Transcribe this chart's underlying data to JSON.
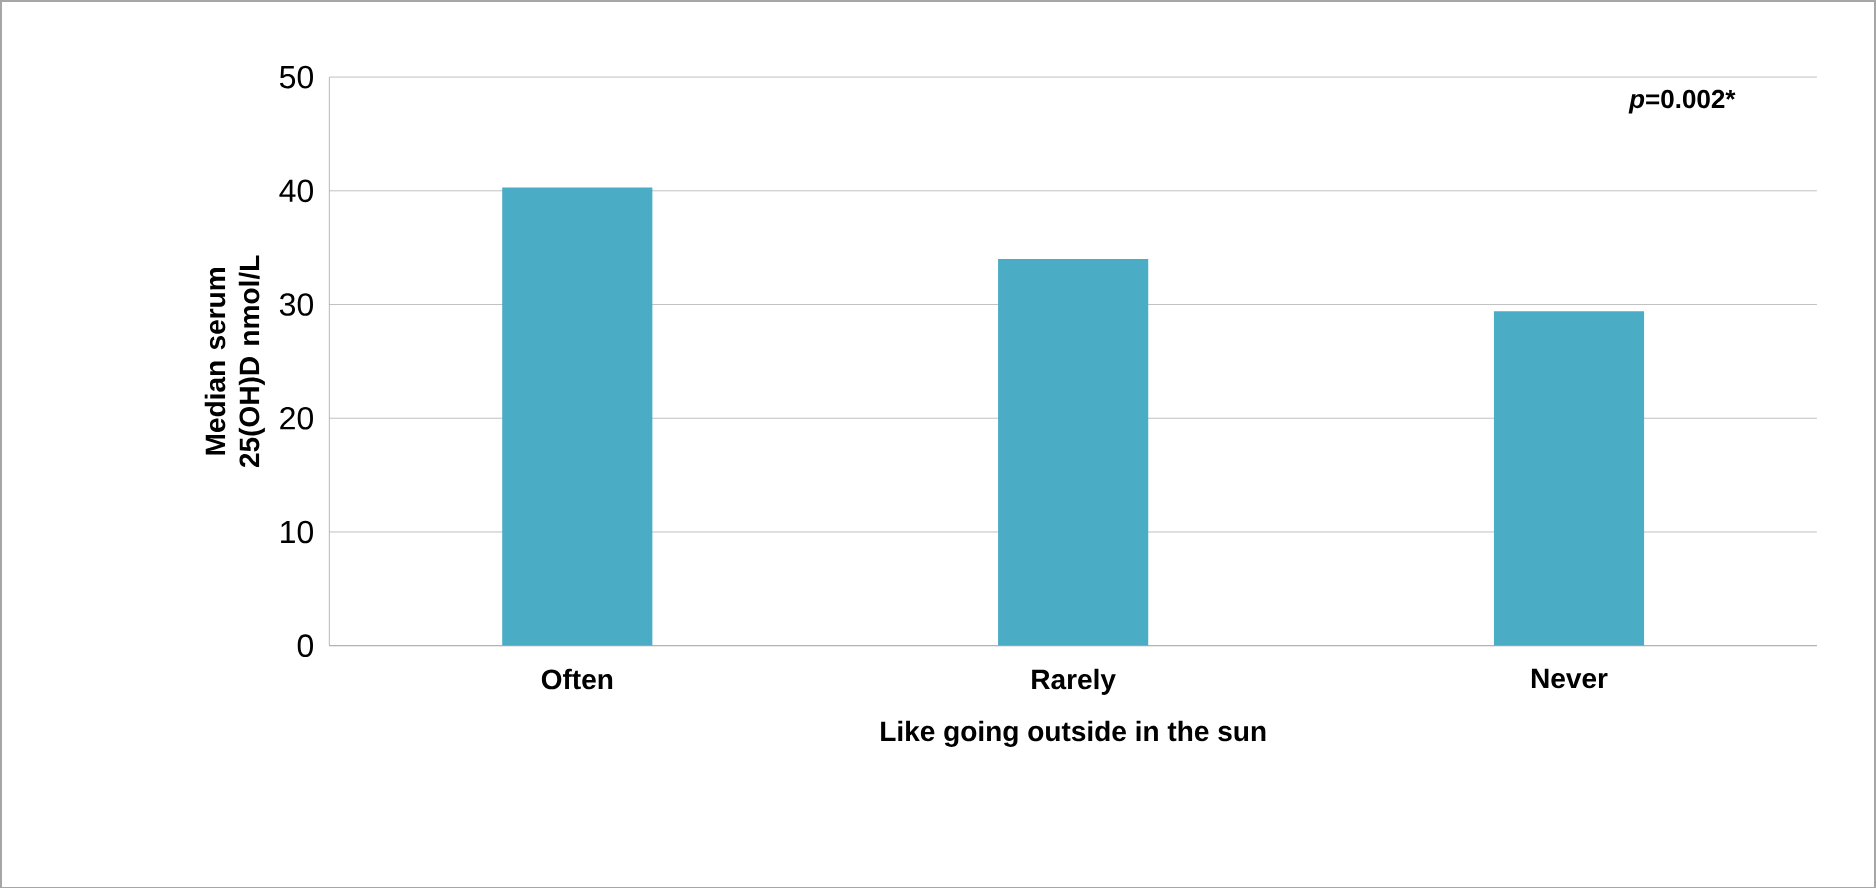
{
  "chart_data": {
    "type": "bar",
    "xlabel": "Like going outside in the sun",
    "ylabel": "Median serum 25(OH)D nmol/L",
    "categories": [
      "Often",
      "Rarely",
      "Never"
    ],
    "values": [
      40.3,
      34.0,
      29.4
    ],
    "color": "#4bacc6",
    "ylim": [
      0,
      50
    ],
    "yticks": [
      0,
      10,
      20,
      30,
      40,
      50
    ],
    "grid": "y",
    "annotations": [
      "*p*=0.002*"
    ]
  }
}
